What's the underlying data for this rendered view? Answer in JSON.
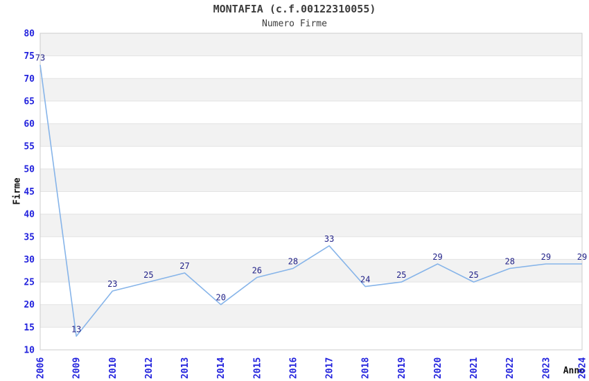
{
  "chart_data": {
    "type": "line",
    "title": "MONTAFIA (c.f.00122310055)",
    "subtitle": "Numero Firme",
    "xlabel": "Anno",
    "ylabel": "Firme",
    "categories": [
      "2006",
      "2009",
      "2010",
      "2012",
      "2013",
      "2014",
      "2015",
      "2016",
      "2017",
      "2018",
      "2019",
      "2020",
      "2021",
      "2022",
      "2023",
      "2024"
    ],
    "values": [
      73,
      13,
      23,
      25,
      27,
      20,
      26,
      28,
      33,
      24,
      25,
      29,
      25,
      28,
      29,
      29
    ],
    "ylim": [
      10,
      80
    ],
    "ytick_step": 5,
    "yticks": [
      10,
      15,
      20,
      25,
      30,
      35,
      40,
      45,
      50,
      55,
      60,
      65,
      70,
      75,
      80
    ],
    "grid": "alternating-horizontal-bands",
    "legend": "none",
    "x_tick_rotation": -90,
    "colors": {
      "line": "#86b4e9",
      "data_label": "#222288",
      "tick_label": "#2222dd",
      "axis_title": "#111111",
      "band_gray": "#f2f2f2",
      "band_white": "#ffffff",
      "gridline": "#e3e3e3",
      "plot_border": "#cccccc",
      "title_color": "#3c3c3c"
    }
  }
}
